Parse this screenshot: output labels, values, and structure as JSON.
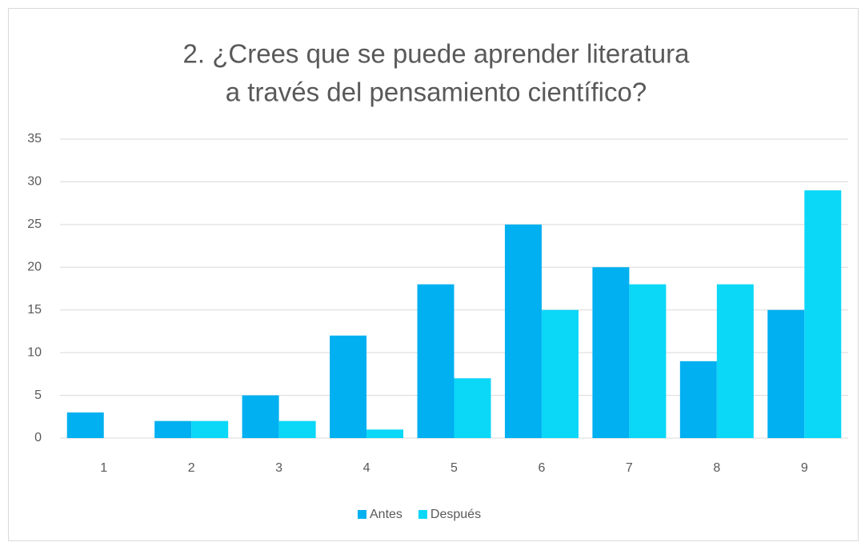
{
  "chart_data": {
    "type": "bar",
    "title": [
      "2. ¿Crees que se puede aprender literatura",
      "a través del pensamiento científico?"
    ],
    "categories": [
      "1",
      "2",
      "3",
      "4",
      "5",
      "6",
      "7",
      "8",
      "9"
    ],
    "series": [
      {
        "name": "Antes",
        "color": "#00b0f0",
        "values": [
          3,
          2,
          5,
          12,
          18,
          25,
          20,
          9,
          15
        ]
      },
      {
        "name": "Después",
        "color": "#0bd7f7",
        "values": [
          0,
          2,
          2,
          1,
          7,
          15,
          18,
          18,
          29
        ]
      }
    ],
    "ylim": [
      0,
      35
    ],
    "yticks": [
      0,
      5,
      10,
      15,
      20,
      25,
      30,
      35
    ],
    "grid": true,
    "legend": "bottom"
  }
}
